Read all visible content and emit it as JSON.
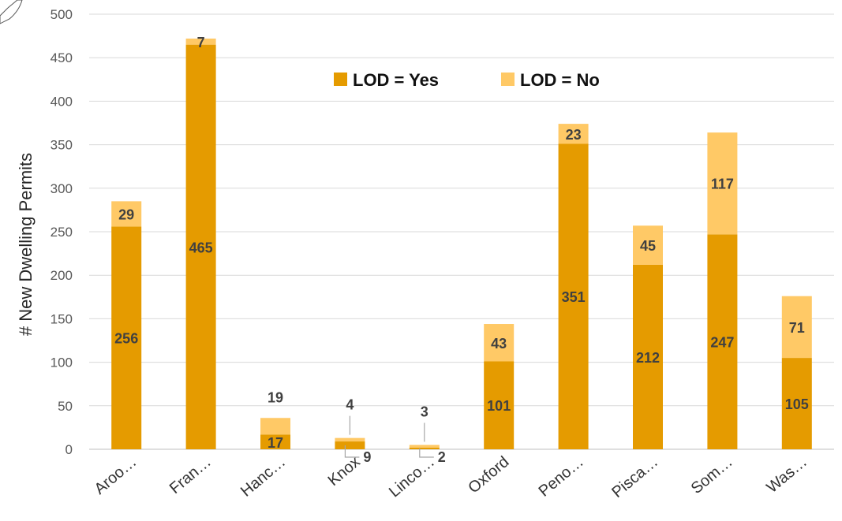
{
  "chart_data": {
    "type": "bar",
    "stacked": true,
    "title": "",
    "xlabel": "",
    "ylabel": "# New Dwelling Permits",
    "ylim": [
      0,
      500
    ],
    "yticks": [
      0,
      50,
      100,
      150,
      200,
      250,
      300,
      350,
      400,
      450,
      500
    ],
    "grid": true,
    "legend_position": "top-center",
    "categories": [
      "Aroo…",
      "Fran…",
      "Hanc…",
      "Knox",
      "Linco…",
      "Oxford",
      "Peno…",
      "Pisca…",
      "Som…",
      "Was…"
    ],
    "series": [
      {
        "name": "LOD = Yes",
        "color": "#E59B00",
        "values": [
          256,
          465,
          17,
          9,
          2,
          101,
          351,
          212,
          247,
          105
        ]
      },
      {
        "name": "LOD = No",
        "color": "#FFC966",
        "values": [
          29,
          7,
          19,
          4,
          3,
          43,
          23,
          45,
          117,
          71
        ]
      }
    ],
    "colors": {
      "grid": "#D9D9D9",
      "axis": "#BFBFBF",
      "label": "#404040"
    }
  }
}
